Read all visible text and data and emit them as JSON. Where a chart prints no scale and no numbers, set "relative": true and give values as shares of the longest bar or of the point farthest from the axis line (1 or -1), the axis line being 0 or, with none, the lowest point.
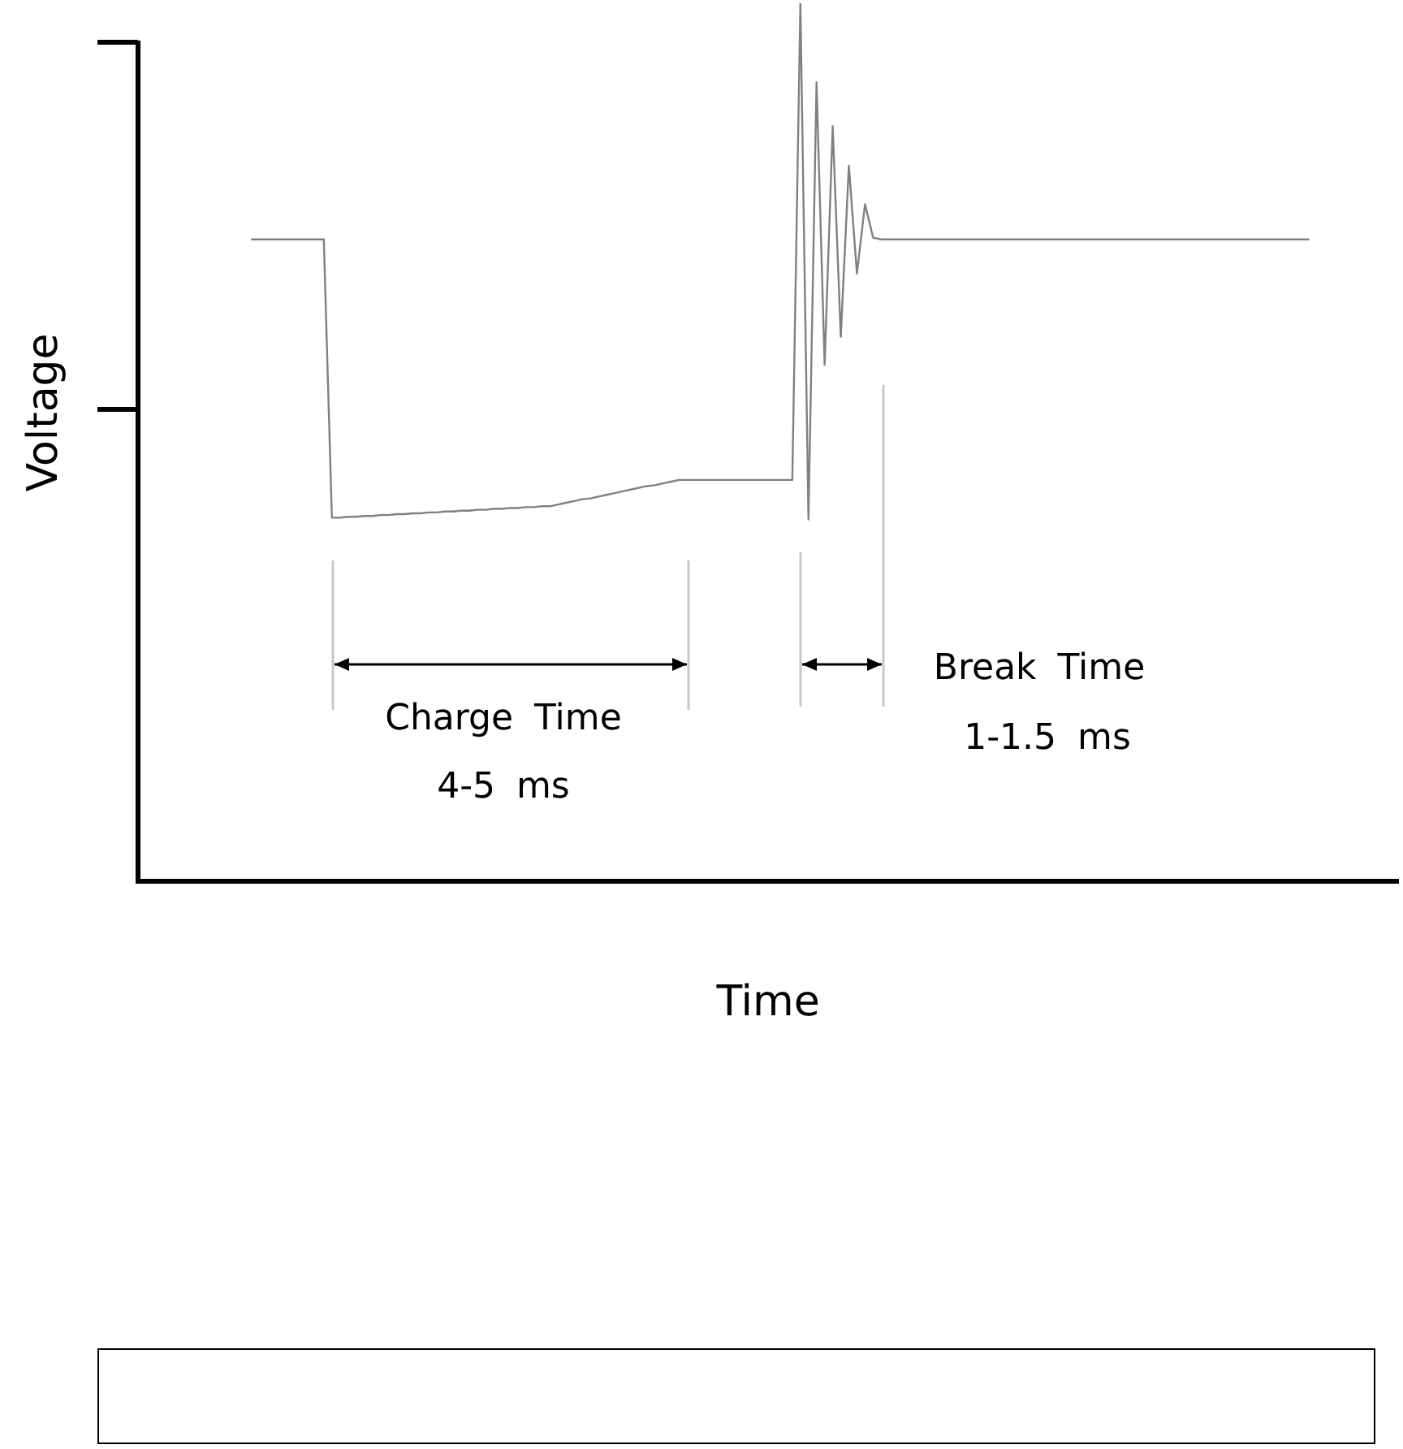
{
  "chart_data": {
    "type": "line",
    "xlabel": "Time",
    "ylabel": "Voltage",
    "relative": true,
    "grid": false,
    "legend": false,
    "marker": "none",
    "color": "#808080",
    "categories": [
      null,
      null,
      null,
      null,
      null,
      null,
      null,
      null,
      null,
      null,
      null,
      null,
      null,
      null,
      null,
      null,
      null,
      null,
      null,
      null,
      null,
      null,
      null,
      null,
      null,
      null,
      null,
      null,
      null,
      null,
      null,
      null,
      null,
      null,
      null,
      null,
      null,
      null,
      null,
      null,
      null,
      null,
      null,
      null,
      null,
      null,
      null,
      null,
      null,
      null,
      null,
      null,
      null,
      null,
      null,
      null,
      null,
      null,
      null,
      null,
      null,
      null,
      null,
      null,
      null,
      null,
      null,
      null,
      null,
      null,
      null,
      null,
      null,
      null,
      null,
      null,
      null,
      null,
      null,
      null,
      null,
      null,
      null,
      null,
      null,
      null,
      null,
      null,
      null,
      null,
      null,
      null,
      null,
      null,
      null,
      null,
      null,
      null,
      null,
      null,
      null,
      null,
      null,
      null,
      null,
      null,
      null,
      null,
      null,
      null,
      null,
      null,
      null,
      null,
      null,
      null,
      null,
      null,
      null,
      null,
      null,
      null,
      null,
      null,
      null,
      null,
      null,
      null,
      null,
      null,
      null,
      null,
      null,
      null,
      null,
      null,
      null,
      null,
      null,
      null,
      null,
      null,
      null,
      null,
      null,
      null,
      null,
      null,
      null,
      null,
      null,
      null,
      null,
      null,
      null,
      null,
      null
    ],
    "values": [
      null,
      null,
      null,
      null,
      null,
      null,
      null,
      null,
      null,
      null,
      null,
      null,
      null,
      null,
      0.731,
      0.731,
      0.731,
      0.731,
      0.731,
      0.731,
      0.731,
      0.731,
      0.731,
      0.731,
      0.414,
      0.414,
      0.415,
      0.415,
      0.416,
      0.416,
      0.417,
      0.417,
      0.418,
      0.418,
      0.419,
      0.419,
      0.42,
      0.42,
      0.421,
      0.421,
      0.422,
      0.422,
      0.423,
      0.423,
      0.424,
      0.424,
      0.425,
      0.425,
      0.426,
      0.426,
      0.427,
      0.427,
      0.429,
      0.431,
      0.433,
      0.435,
      0.436,
      0.438,
      0.44,
      0.442,
      0.444,
      0.446,
      0.448,
      0.45,
      0.451,
      0.453,
      0.455,
      0.457,
      0.457,
      0.457,
      0.457,
      0.457,
      0.457,
      0.457,
      0.457,
      0.457,
      0.457,
      0.457,
      0.457,
      0.457,
      0.457,
      0.457,
      1.0,
      0.412,
      0.91,
      0.588,
      0.86,
      0.62,
      0.815,
      0.692,
      0.771,
      0.733,
      0.731,
      0.731,
      0.731,
      0.731,
      0.731,
      0.731,
      0.731,
      0.731,
      0.731,
      0.731,
      0.731,
      0.731,
      0.731,
      0.731,
      0.731,
      0.731,
      0.731,
      0.731,
      0.731,
      0.731,
      0.731,
      0.731,
      0.731,
      0.731,
      0.731,
      0.731,
      0.731,
      0.731,
      0.731,
      0.731,
      0.731,
      0.731,
      0.731,
      0.731,
      0.731,
      0.731,
      0.731,
      0.731,
      0.731,
      0.731,
      0.731,
      0.731,
      0.731,
      0.731,
      0.731,
      0.731,
      0.731,
      0.731,
      0.731,
      0.731,
      0.731,
      0.731,
      0.731,
      0.731,
      null,
      null,
      null,
      null,
      null,
      null,
      null,
      null,
      null,
      null,
      null
    ],
    "annotations": [
      "Charge Time",
      "4-5 ms",
      "Break Time",
      "1-1.5 ms"
    ]
  }
}
